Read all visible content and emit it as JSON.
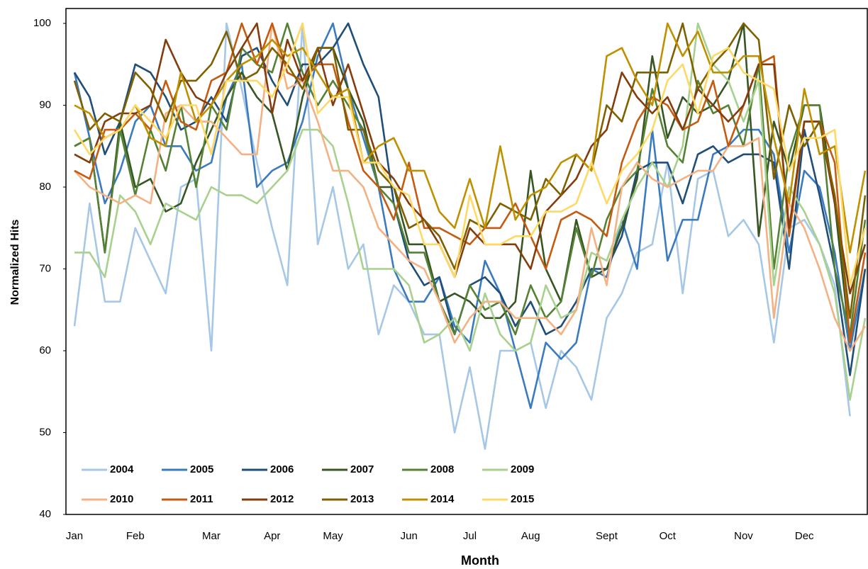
{
  "chart_data": {
    "type": "line",
    "x_label": "Month",
    "y_label": "Normalized Hits",
    "categories": [
      "Jan",
      null,
      null,
      null,
      "Feb",
      null,
      null,
      null,
      null,
      "Mar",
      null,
      null,
      null,
      "Apr",
      null,
      null,
      null,
      "May",
      null,
      null,
      null,
      null,
      "Jun",
      null,
      null,
      null,
      "Jul",
      null,
      null,
      null,
      "Aug",
      null,
      null,
      null,
      null,
      "Sept",
      null,
      null,
      null,
      "Oct",
      null,
      null,
      null,
      null,
      "Nov",
      null,
      null,
      null,
      "Dec",
      null,
      null,
      null,
      null
    ],
    "ylim": [
      40,
      100
    ],
    "yticks": [
      40,
      50,
      60,
      70,
      80,
      90,
      100
    ],
    "grid": false,
    "legend": "lower left",
    "series": [
      {
        "name": "2004",
        "color": "#a6c8e6",
        "values": [
          63,
          78,
          66,
          66,
          75,
          71,
          67,
          80,
          81,
          60,
          100,
          92,
          83,
          75,
          68,
          100,
          73,
          80,
          70,
          73,
          62,
          68,
          66,
          62,
          62,
          50,
          58,
          48,
          60,
          60,
          61,
          53,
          60,
          58,
          54,
          64,
          67,
          72,
          73,
          83,
          67,
          81,
          82,
          74,
          76,
          73,
          61,
          75,
          76,
          73,
          68,
          52,
          null
        ]
      },
      {
        "name": "2005",
        "color": "#3a7bbf",
        "values": [
          94,
          86,
          78,
          82,
          88,
          90,
          85,
          85,
          82,
          83,
          91,
          95,
          80,
          82,
          83,
          88,
          96,
          100,
          92,
          86,
          80,
          70,
          66,
          66,
          69,
          63,
          61,
          71,
          67,
          60,
          53,
          61,
          59,
          61,
          70,
          69,
          76,
          70,
          87,
          71,
          76,
          76,
          84,
          85,
          87,
          87,
          84,
          72,
          82,
          80,
          72,
          60,
          70
        ]
      },
      {
        "name": "2006",
        "color": "#1f4e79",
        "values": [
          94,
          91,
          84,
          88,
          95,
          94,
          91,
          87,
          88,
          91,
          88,
          96,
          97,
          93,
          90,
          95,
          95,
          97,
          100,
          95,
          91,
          78,
          71,
          68,
          69,
          62,
          68,
          69,
          67,
          63,
          66,
          62,
          63,
          66,
          70,
          70,
          74,
          82,
          83,
          83,
          78,
          84,
          85,
          83,
          84,
          84,
          83,
          70,
          87,
          79,
          70,
          57,
          70
        ]
      },
      {
        "name": "2007",
        "color": "#375623",
        "values": [
          85,
          86,
          72,
          88,
          80,
          81,
          77,
          78,
          83,
          87,
          91,
          94,
          91,
          89,
          82,
          91,
          97,
          97,
          92,
          88,
          80,
          80,
          73,
          73,
          66,
          67,
          66,
          64,
          64,
          66,
          82,
          70,
          66,
          76,
          69,
          70,
          75,
          81,
          96,
          86,
          91,
          89,
          90,
          93,
          100,
          74,
          88,
          82,
          90,
          90,
          78,
          61,
          null
        ]
      },
      {
        "name": "2008",
        "color": "#548235",
        "values": [
          85,
          86,
          72,
          87,
          79,
          87,
          82,
          90,
          80,
          90,
          87,
          97,
          95,
          94,
          100,
          94,
          90,
          93,
          90,
          87,
          80,
          78,
          72,
          72,
          66,
          62,
          68,
          65,
          66,
          62,
          68,
          64,
          66,
          75,
          69,
          76,
          80,
          82,
          92,
          85,
          83,
          93,
          89,
          90,
          85,
          95,
          70,
          84,
          90,
          90,
          70,
          62,
          76
        ]
      },
      {
        "name": "2009",
        "color": "#a9d18e",
        "values": [
          72,
          72,
          69,
          79,
          77,
          73,
          78,
          77,
          76,
          80,
          79,
          79,
          78,
          80,
          82,
          87,
          87,
          85,
          78,
          70,
          70,
          70,
          68,
          61,
          62,
          64,
          60,
          67,
          62,
          60,
          61,
          68,
          64,
          65,
          72,
          71,
          76,
          80,
          83,
          80,
          85,
          100,
          95,
          93,
          88,
          93,
          68,
          80,
          77,
          73,
          67,
          54,
          64
        ]
      },
      {
        "name": "2010",
        "color": "#f4b183",
        "values": [
          82,
          80,
          79,
          78,
          79,
          78,
          89,
          90,
          88,
          88,
          86,
          84,
          84,
          100,
          92,
          93,
          88,
          82,
          82,
          80,
          75,
          73,
          71,
          70,
          66,
          61,
          64,
          66,
          66,
          64,
          64,
          64,
          62,
          65,
          75,
          68,
          80,
          83,
          81,
          80,
          81,
          82,
          82,
          85,
          85,
          86,
          64,
          78,
          75,
          70,
          64,
          60,
          63
        ]
      },
      {
        "name": "2011",
        "color": "#c55a11",
        "values": [
          82,
          81,
          87,
          87,
          89,
          87,
          93,
          88,
          87,
          93,
          94,
          100,
          95,
          100,
          94,
          93,
          95,
          95,
          88,
          82,
          80,
          76,
          83,
          75,
          75,
          74,
          73,
          75,
          75,
          78,
          74,
          70,
          76,
          77,
          76,
          74,
          83,
          88,
          91,
          90,
          87,
          88,
          93,
          85,
          90,
          95,
          96,
          74,
          88,
          88,
          83,
          61,
          72
        ]
      },
      {
        "name": "2012",
        "color": "#843c0c",
        "values": [
          84,
          83,
          88,
          89,
          89,
          90,
          98,
          94,
          91,
          90,
          94,
          97,
          100,
          89,
          98,
          93,
          97,
          90,
          95,
          89,
          83,
          81,
          78,
          76,
          73,
          69,
          75,
          73,
          73,
          73,
          70,
          77,
          79,
          81,
          85,
          87,
          94,
          91,
          89,
          91,
          87,
          92,
          90,
          88,
          90,
          95,
          95,
          75,
          88,
          88,
          78,
          67,
          73
        ]
      },
      {
        "name": "2013",
        "color": "#7f6000",
        "values": [
          93,
          87,
          89,
          88,
          94,
          92,
          88,
          93,
          93,
          95,
          99,
          93,
          94,
          97,
          95,
          92,
          97,
          97,
          87,
          87,
          82,
          80,
          75,
          76,
          74,
          70,
          76,
          75,
          78,
          77,
          76,
          81,
          79,
          84,
          82,
          90,
          88,
          94,
          94,
          94,
          100,
          92,
          95,
          97,
          100,
          98,
          81,
          90,
          85,
          88,
          79,
          64,
          79
        ]
      },
      {
        "name": "2014",
        "color": "#bf9000",
        "values": [
          90,
          89,
          86,
          87,
          90,
          86,
          85,
          94,
          88,
          90,
          93,
          95,
          96,
          98,
          96,
          97,
          94,
          91,
          92,
          83,
          85,
          86,
          82,
          82,
          77,
          75,
          81,
          75,
          85,
          76,
          79,
          80,
          83,
          84,
          82,
          96,
          97,
          93,
          90,
          100,
          96,
          99,
          94,
          94,
          96,
          96,
          86,
          78,
          92,
          84,
          85,
          72,
          82
        ]
      },
      {
        "name": "2015",
        "color": "#ffd966",
        "values": [
          87,
          84,
          86,
          87,
          90,
          88,
          86,
          90,
          90,
          84,
          93,
          93,
          93,
          91,
          95,
          100,
          89,
          91,
          91,
          83,
          83,
          80,
          79,
          73,
          73,
          69,
          79,
          73,
          73,
          74,
          74,
          77,
          77,
          78,
          83,
          78,
          82,
          84,
          87,
          93,
          95,
          89,
          96,
          97,
          94,
          93,
          92,
          82,
          86,
          86,
          87,
          68,
          75
        ]
      }
    ]
  }
}
